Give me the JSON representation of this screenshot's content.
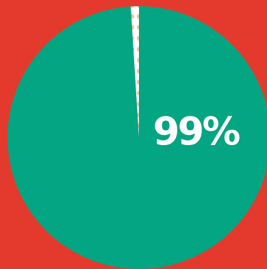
{
  "colors": {
    "background": "#e43a2e",
    "major_slice": "#03a582",
    "minor_slice": "#ffffff",
    "minor_slice_dots": "#f2c29e",
    "label": "#ffffff"
  },
  "chart_data": {
    "type": "pie",
    "values": [
      99,
      1
    ],
    "slice_label": "99%"
  }
}
